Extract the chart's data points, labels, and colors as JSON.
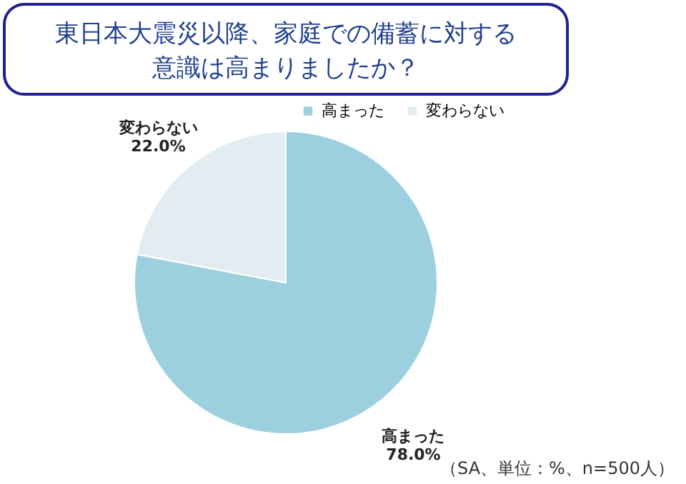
{
  "chart_data": {
    "type": "pie",
    "title": "東日本大震災以降、家庭での備蓄に対する意識は高まりましたか？",
    "categories": [
      "高まった",
      "変わらない"
    ],
    "values": [
      78.0,
      22.0
    ],
    "colors": [
      "#9dd0df",
      "#e3edf1"
    ],
    "value_labels": [
      "78.0%",
      "22.0%"
    ],
    "legend": "top",
    "annotations": [
      "（SA、単位：%、n=500人）"
    ]
  }
}
